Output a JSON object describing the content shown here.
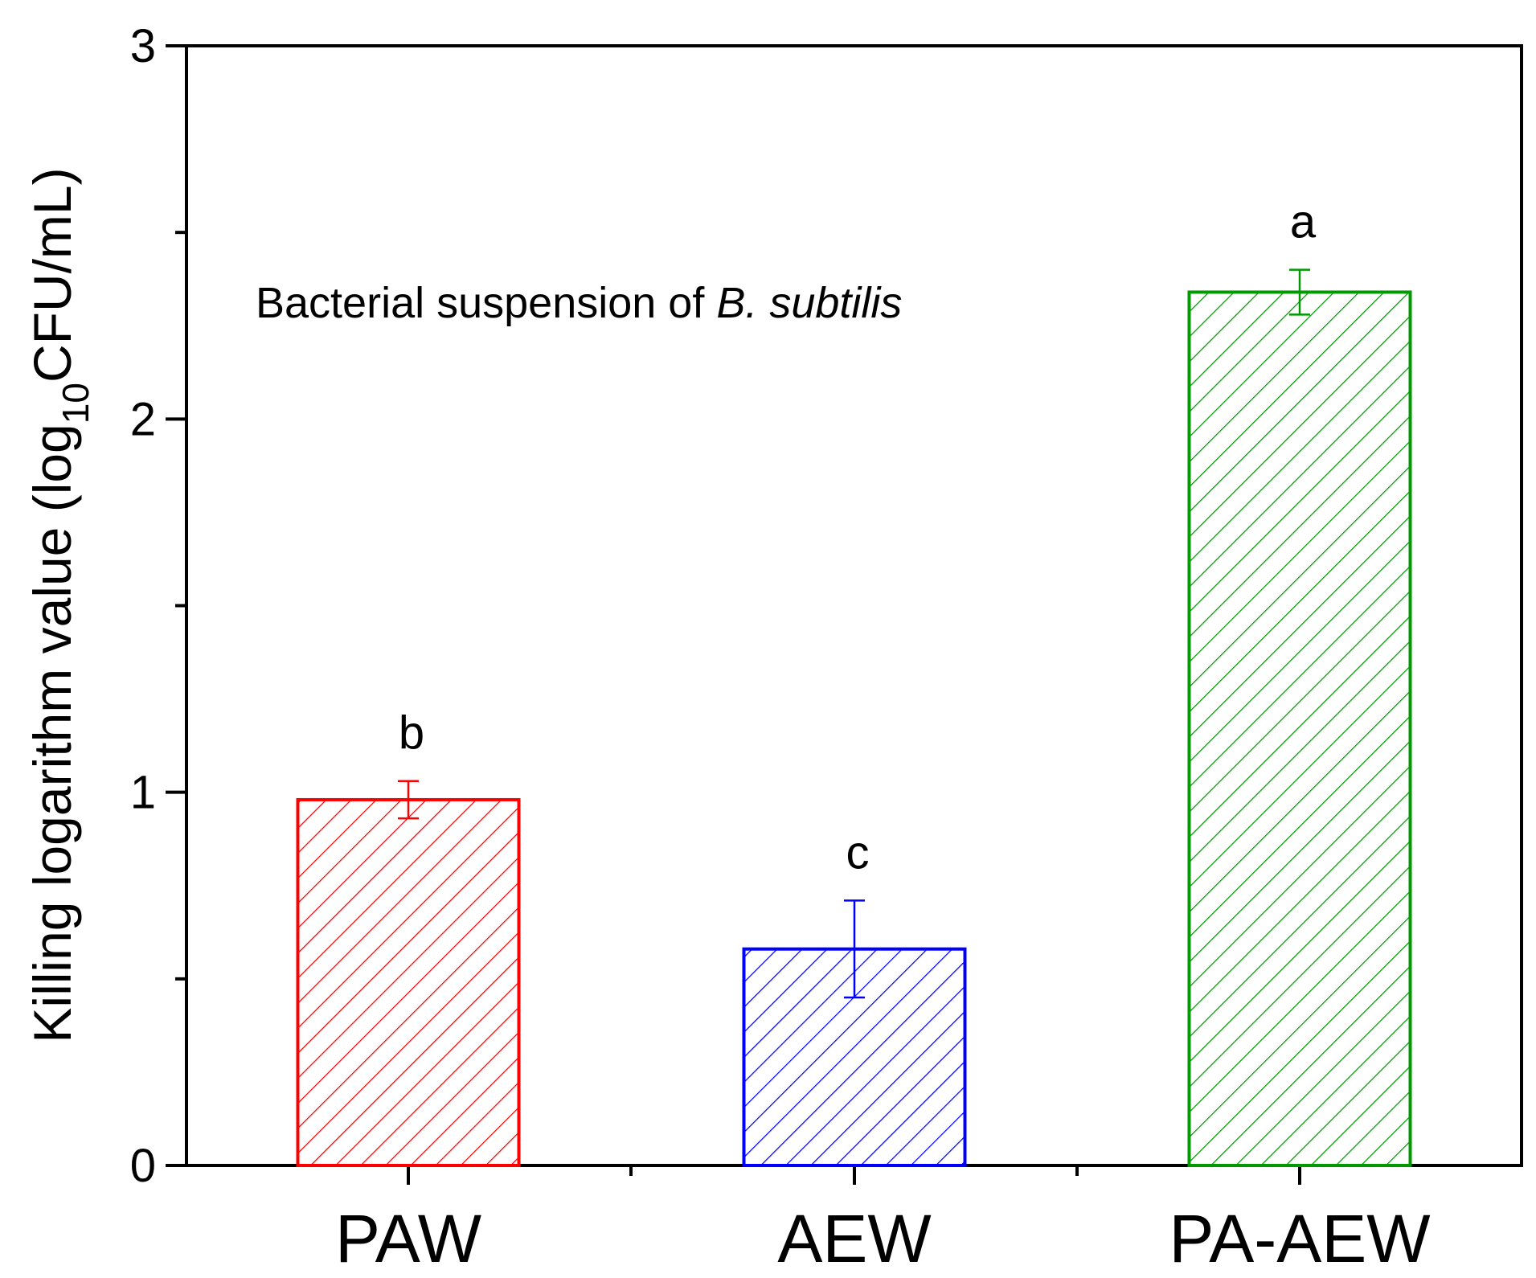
{
  "chart_data": {
    "type": "bar",
    "categories": [
      "PAW",
      "AEW",
      "PA-AEW"
    ],
    "values": [
      0.98,
      0.58,
      2.34
    ],
    "errors": [
      0.05,
      0.13,
      0.06
    ],
    "significance": [
      "b",
      "c",
      "a"
    ],
    "colors": [
      "#ff0000",
      "#0000ff",
      "#009900"
    ],
    "ylim": [
      0,
      3
    ],
    "yticks": [
      "0",
      "1",
      "2",
      "3"
    ],
    "ylabel": {
      "main": "Killing logarithm value (log",
      "sub": "10",
      "tail": "CFU/mL)"
    },
    "annotation": {
      "prefix": "Bacterial suspension of ",
      "italic": "B. subtilis"
    }
  }
}
